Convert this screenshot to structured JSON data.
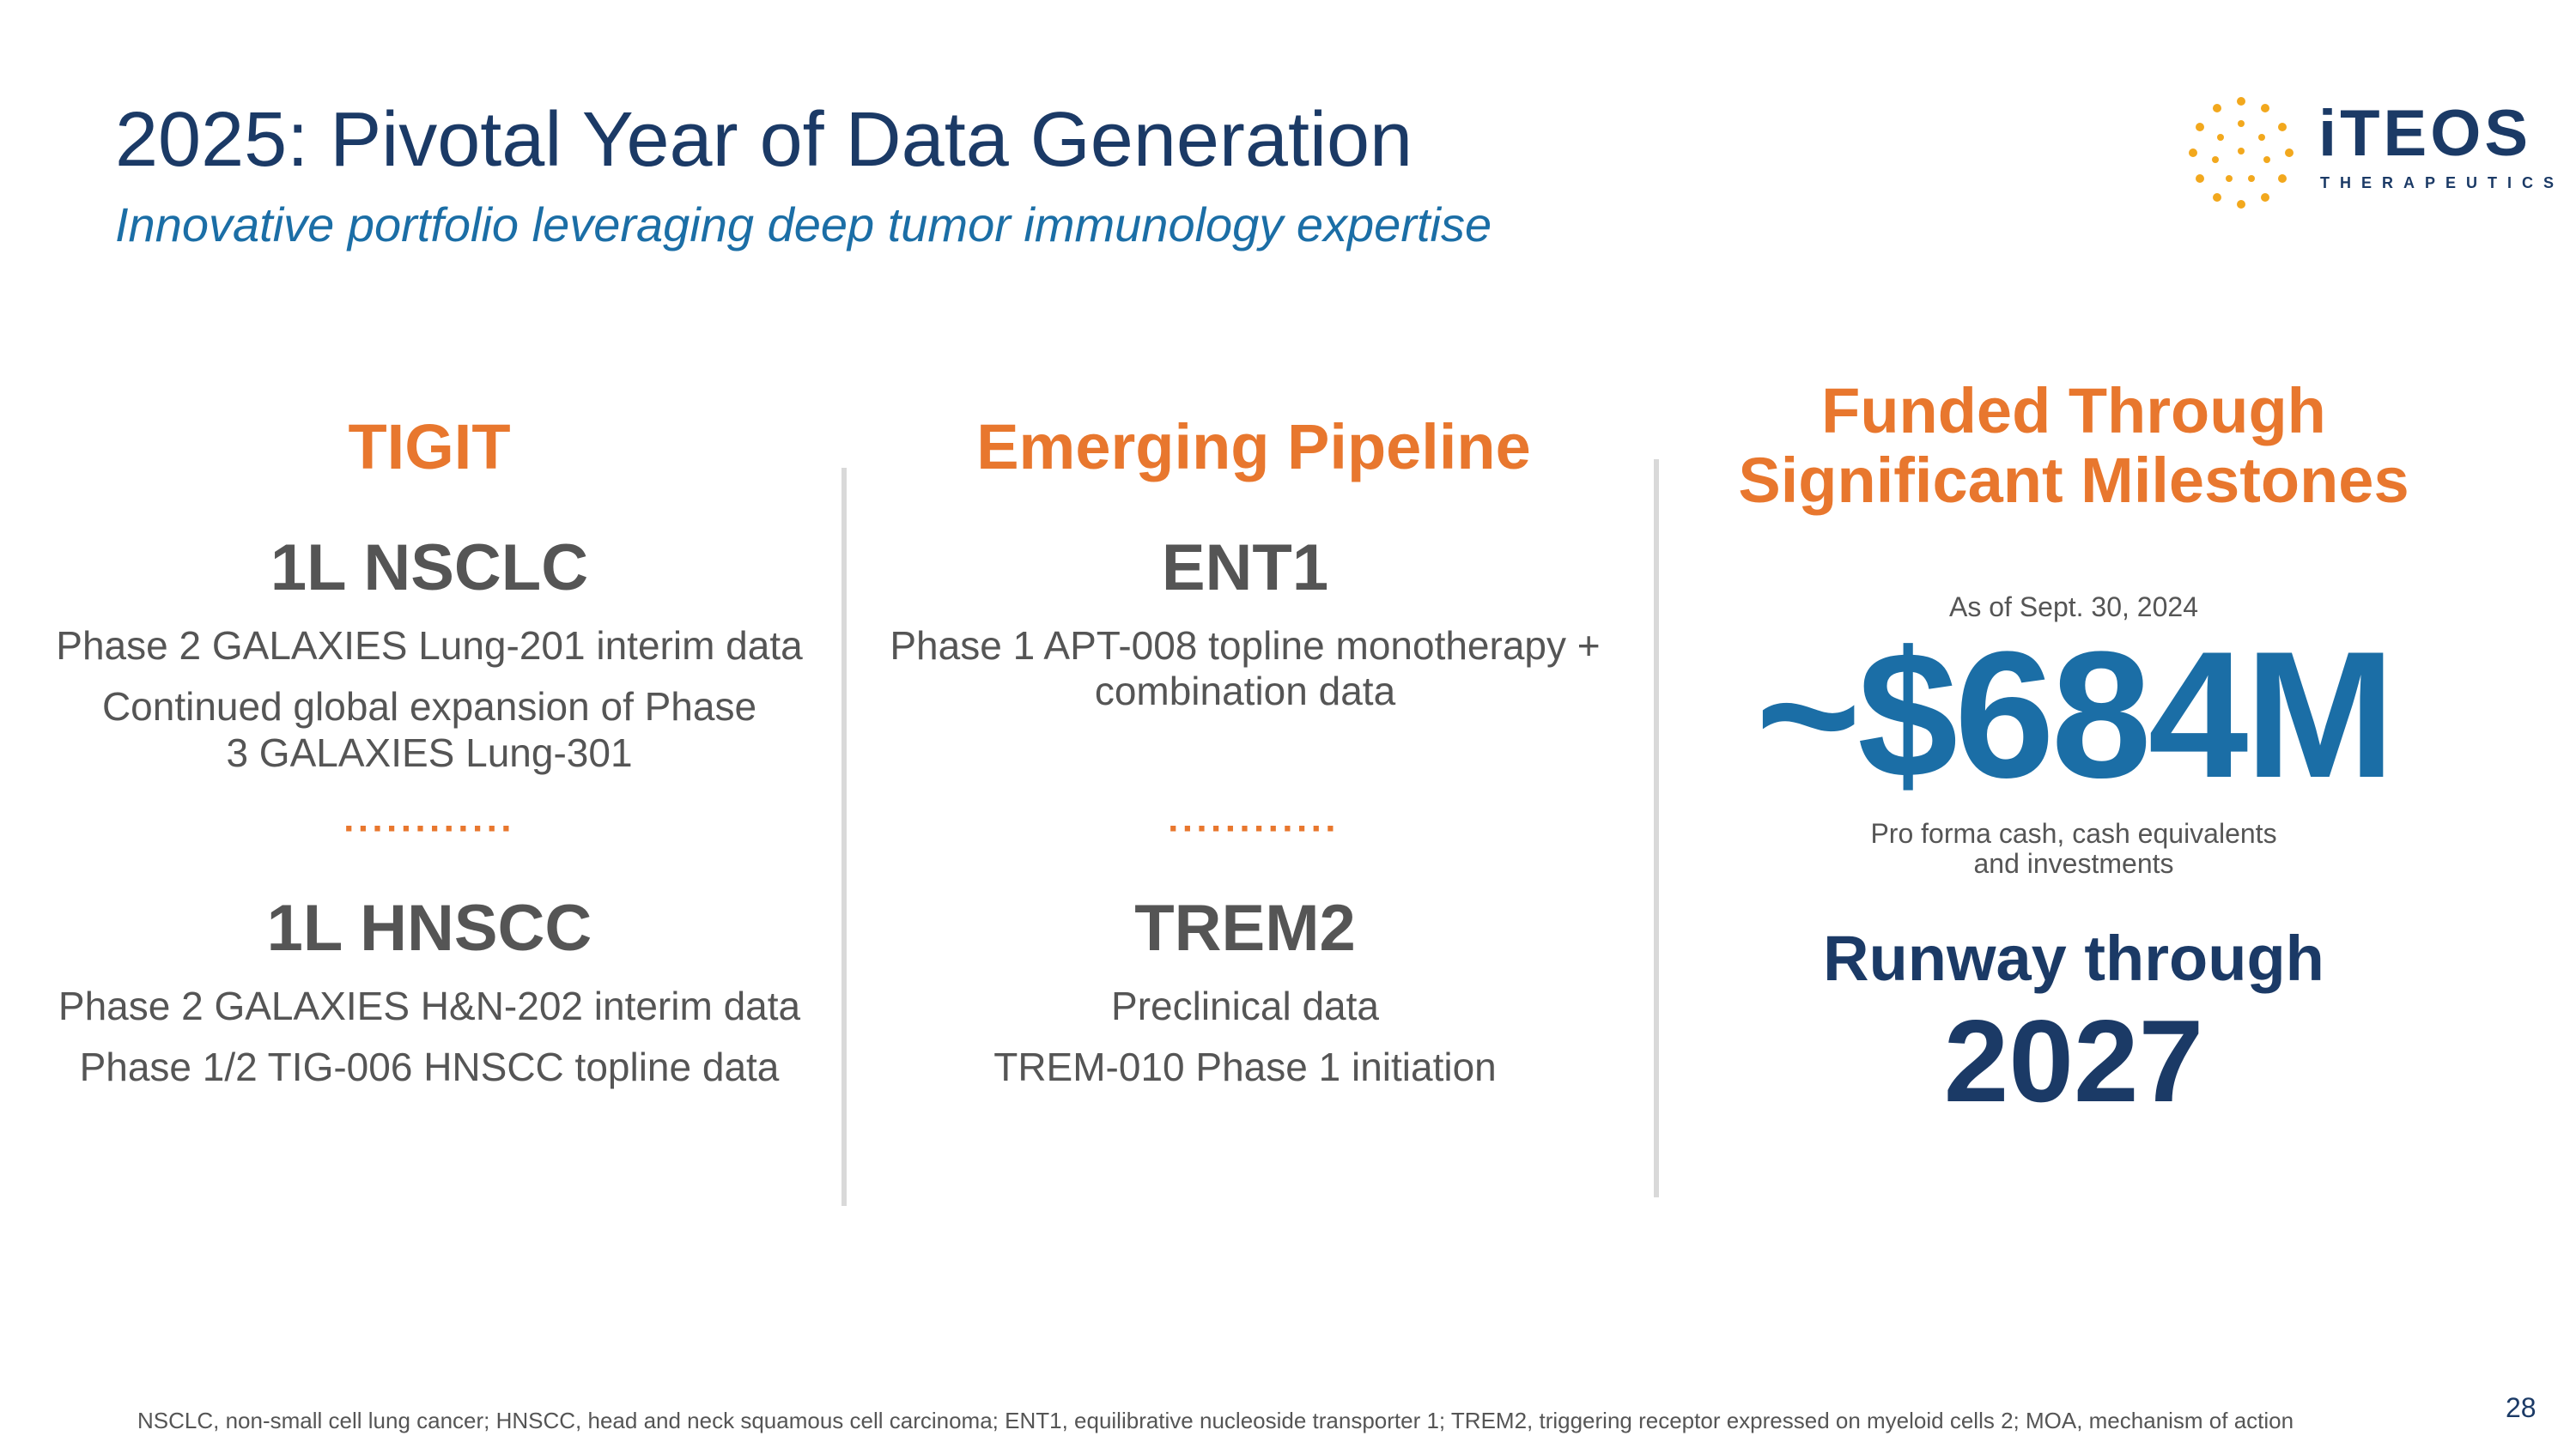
{
  "header": {
    "title": "2025: Pivotal Year of Data Generation",
    "subtitle": "Innovative portfolio leveraging deep tumor immunology expertise"
  },
  "logo": {
    "word": "iTEOS",
    "sub": "THERAPEUTICS",
    "dot_color": "#f2a81d"
  },
  "columns": {
    "tigit": {
      "heading": "TIGIT",
      "section1": {
        "title": "1L NSCLC",
        "lines": [
          "Phase 2 GALAXIES Lung-201 interim data",
          "Continued global expansion of Phase 3 GALAXIES Lung-301"
        ]
      },
      "separator": "············",
      "section2": {
        "title": "1L HNSCC",
        "lines": [
          "Phase 2 GALAXIES H&N-202 interim data",
          "Phase 1/2 TIG-006 HNSCC topline data"
        ]
      }
    },
    "pipeline": {
      "heading": "Emerging Pipeline",
      "section1": {
        "title": "ENT1",
        "lines": [
          "Phase 1 APT-008 topline monotherapy + combination data"
        ]
      },
      "separator": "············",
      "section2": {
        "title": "TREM2",
        "lines": [
          "Preclinical data",
          "TREM-010 Phase 1 initiation"
        ]
      }
    },
    "funding": {
      "heading_line1": "Funded Through",
      "heading_line2": "Significant Milestones",
      "as_of": "As of Sept. 30, 2024",
      "amount": "~$684M",
      "desc_line1": "Pro forma cash, cash equivalents",
      "desc_line2": "and investments",
      "runway_label": "Runway through",
      "runway_year": "2027"
    }
  },
  "footer": {
    "footnote": "NSCLC, non-small cell lung cancer; HNSCC, head and neck squamous cell carcinoma; ENT1, equilibrative nucleoside transporter 1; TREM2, triggering receptor expressed on myeloid cells 2;   MOA, mechanism of action",
    "page_number": "28"
  },
  "colors": {
    "navy": "#1b3a66",
    "blue": "#1b6ea6",
    "orange": "#e8772e",
    "grey_text": "#555555",
    "divider": "#d9d9d9"
  }
}
